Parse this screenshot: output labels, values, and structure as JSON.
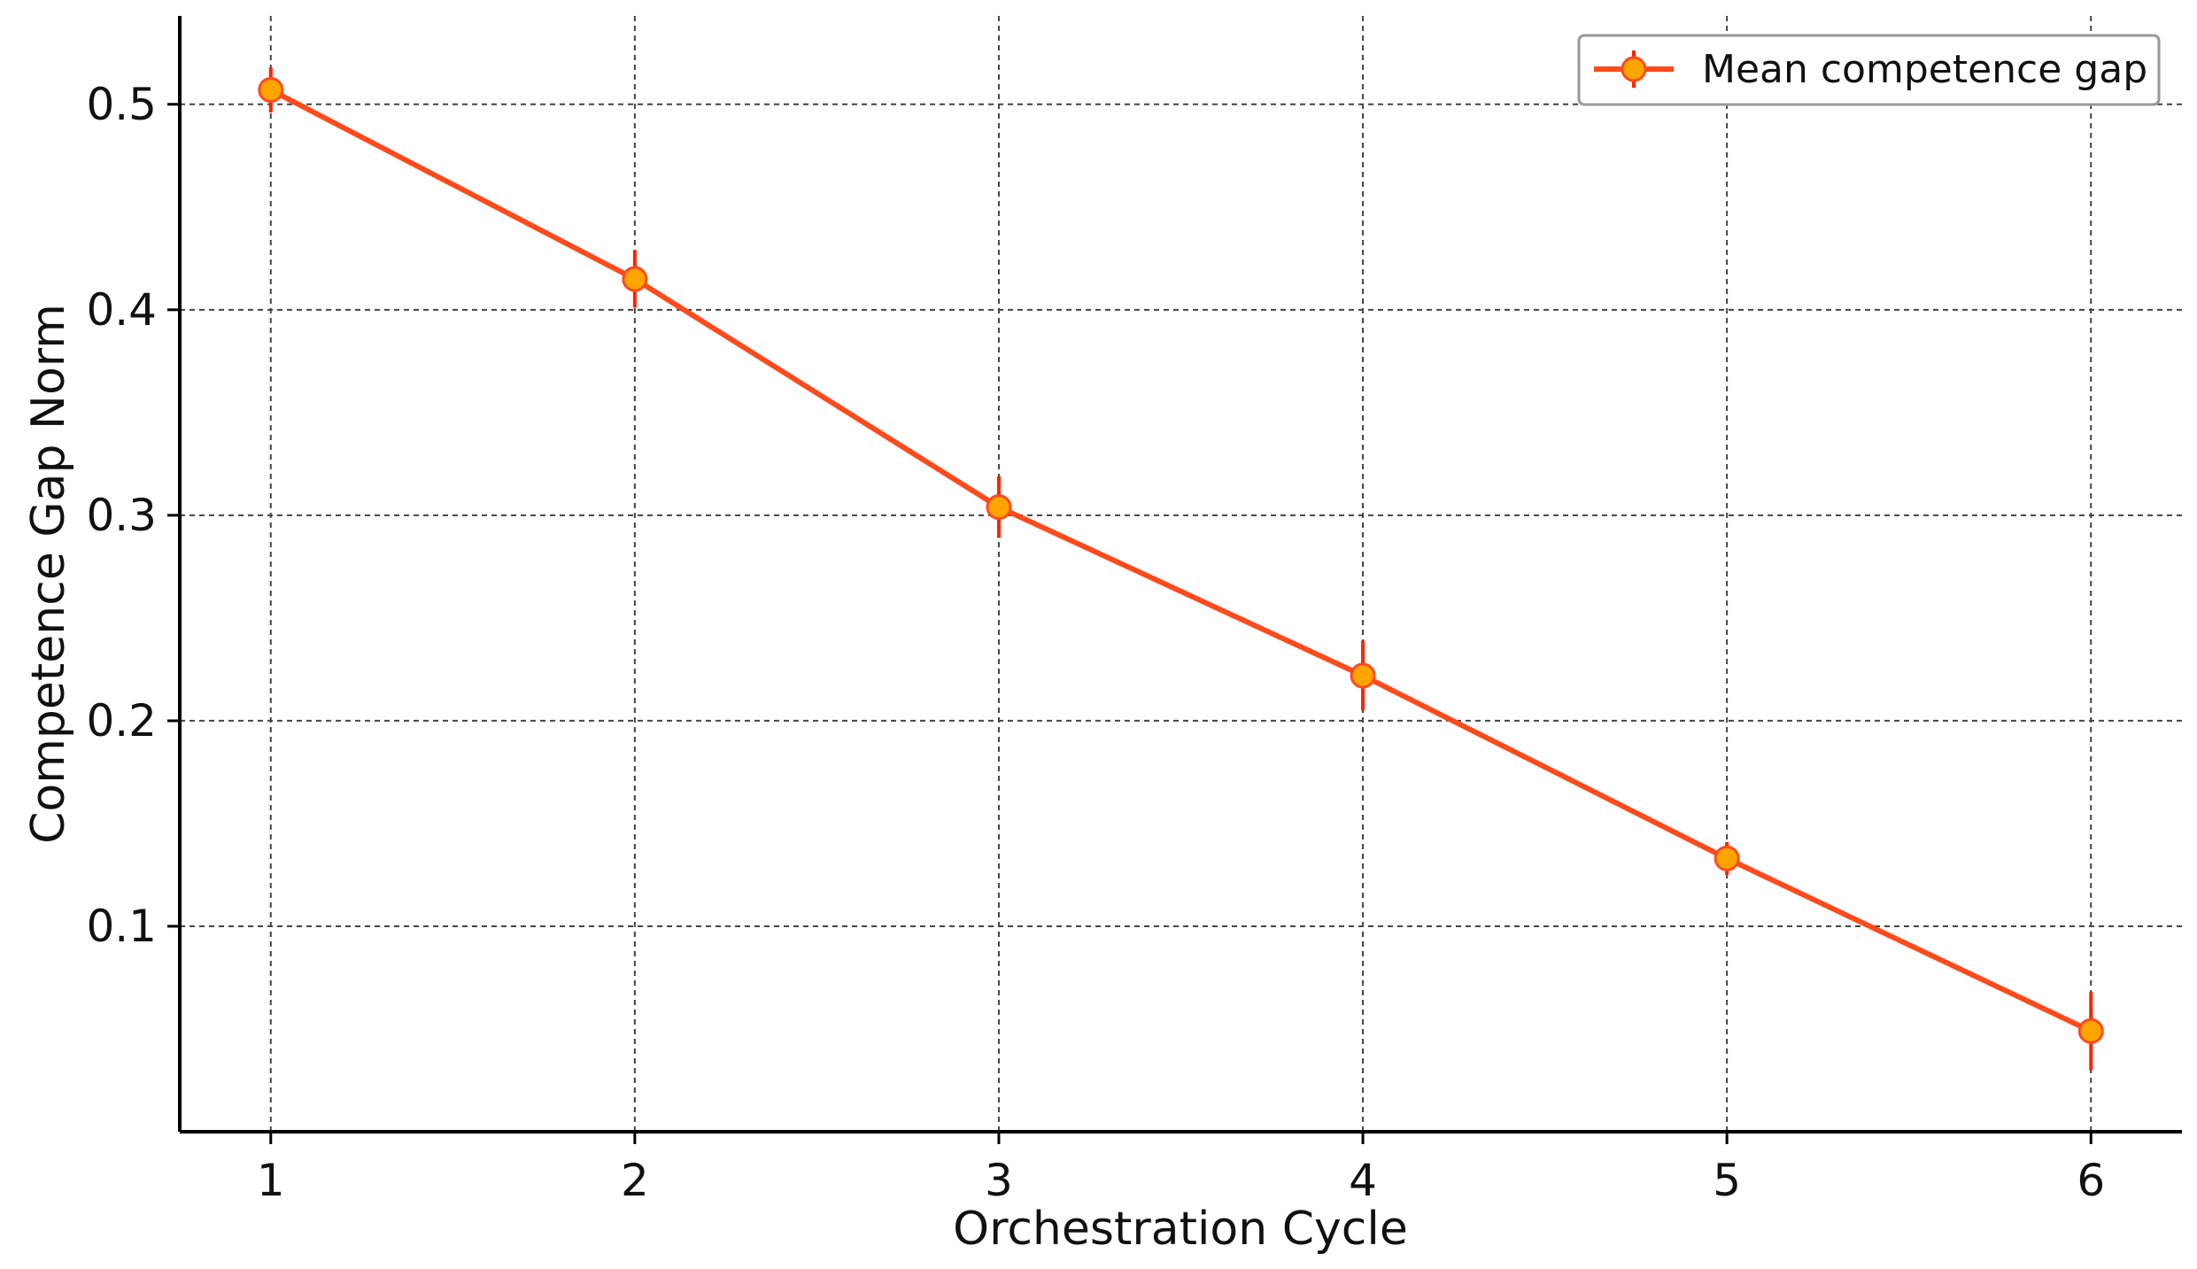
{
  "chart_data": {
    "type": "line",
    "title": "",
    "xlabel": "Orchestration Cycle",
    "ylabel": "Competence Gap Norm",
    "x": [
      1,
      2,
      3,
      4,
      5,
      6
    ],
    "series": [
      {
        "name": "Mean competence gap",
        "values": [
          0.507,
          0.415,
          0.304,
          0.222,
          0.133,
          0.049
        ],
        "errors": [
          0.011,
          0.014,
          0.015,
          0.017,
          0.008,
          0.019
        ],
        "line_color": "#ff4a1c",
        "marker_color": "#ffa500",
        "errorbar_color": "#ff2200"
      }
    ],
    "xticks": [
      "1",
      "2",
      "3",
      "4",
      "5",
      "6"
    ],
    "yticks": [
      "0.1",
      "0.2",
      "0.3",
      "0.4",
      "0.5"
    ],
    "ytick_values": [
      0.1,
      0.2,
      0.3,
      0.4,
      0.5
    ],
    "xlim": [
      0.75,
      6.25
    ],
    "ylim": [
      0.0,
      0.543
    ],
    "grid": true,
    "legend_position": "top-right"
  }
}
